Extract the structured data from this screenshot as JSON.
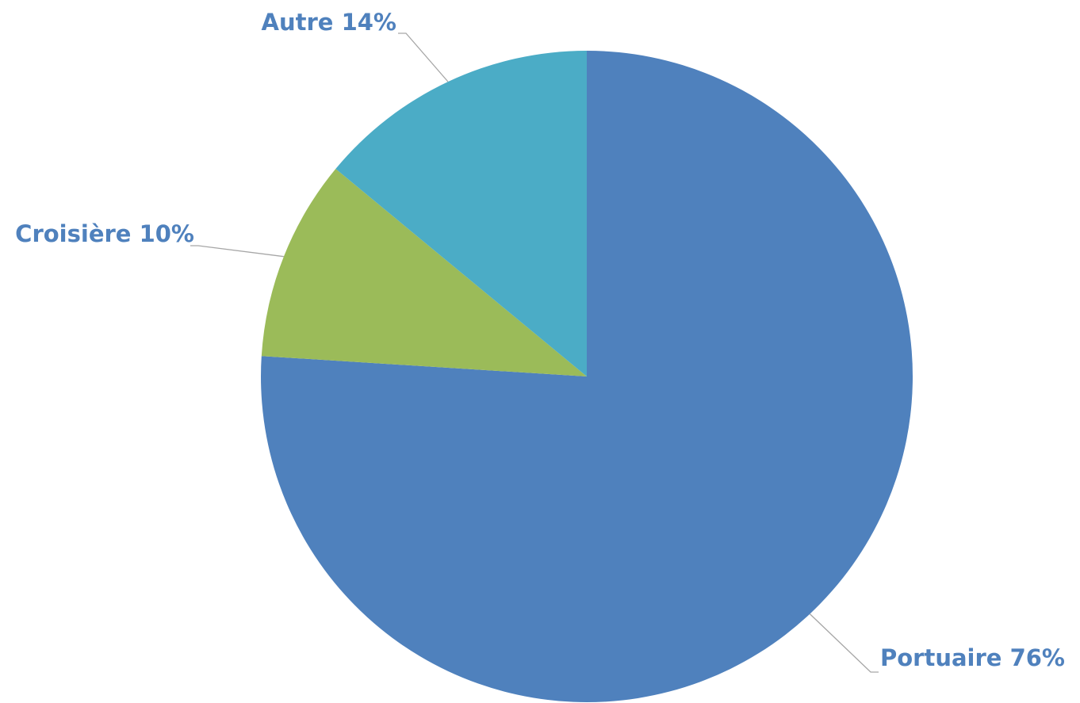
{
  "chart_data": {
    "type": "pie",
    "categories": [
      "Portuaire",
      "Croisière",
      "Autre"
    ],
    "values": [
      76,
      10,
      14
    ],
    "value_labels": [
      "76%",
      "10%",
      "14%"
    ],
    "colors": [
      "#4f81bd",
      "#9bbb59",
      "#4bacc6"
    ]
  }
}
